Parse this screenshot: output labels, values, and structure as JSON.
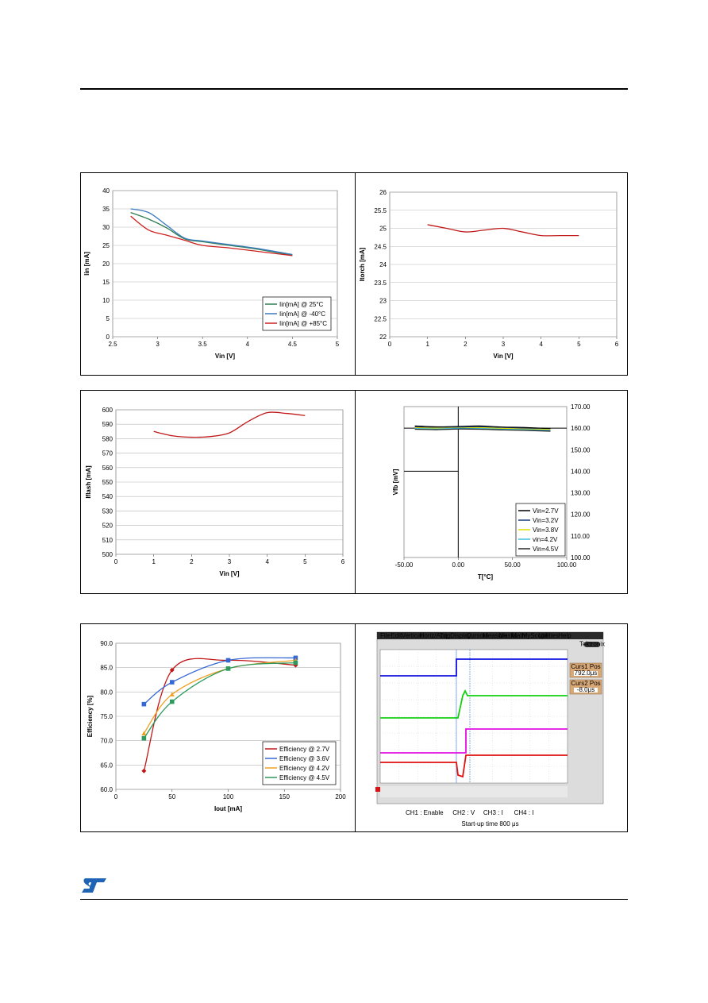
{
  "charts": [
    {
      "type": "line",
      "xlabel": "Vin [V]",
      "ylabel": "lin [mA]",
      "xlim": [
        2.5,
        5
      ],
      "ylim": [
        0,
        40
      ],
      "xticks": [
        2.5,
        3,
        3.5,
        4,
        4.5,
        5
      ],
      "yticks": [
        0,
        5,
        10,
        15,
        20,
        25,
        30,
        35,
        40
      ],
      "grid": true,
      "legend": "bottom-right",
      "series": [
        {
          "name": "Iin[mA] @ 25°C",
          "color": "#2e7d4f",
          "x": [
            2.7,
            2.9,
            3.1,
            3.3,
            3.5,
            3.8,
            4.1,
            4.5
          ],
          "y": [
            34,
            32.2,
            29.8,
            26.8,
            26,
            25,
            24,
            22.3
          ]
        },
        {
          "name": "Iin[mA] @ -40°C",
          "color": "#3b7bbf",
          "x": [
            2.7,
            2.9,
            3.1,
            3.3,
            3.5,
            3.8,
            4.1,
            4.5
          ],
          "y": [
            35,
            34,
            30.5,
            27,
            26.2,
            25.2,
            24.2,
            22.5
          ]
        },
        {
          "name": "Iin[mA] @ +85°C",
          "color": "#d02020",
          "x": [
            2.7,
            2.9,
            3.1,
            3.3,
            3.5,
            3.8,
            4.1,
            4.5
          ],
          "y": [
            33,
            29.2,
            27.8,
            26.4,
            25,
            24.3,
            23.4,
            22.2
          ]
        }
      ]
    },
    {
      "type": "line",
      "xlabel": "Vin [V]",
      "ylabel": "Itorch [mA]",
      "xlim": [
        0,
        6
      ],
      "ylim": [
        22,
        26
      ],
      "xticks": [
        0,
        1,
        2,
        3,
        4,
        5,
        6
      ],
      "yticks": [
        22,
        22.5,
        23,
        23.5,
        24,
        24.5,
        25,
        25.5,
        26
      ],
      "grid": true,
      "series": [
        {
          "name": "",
          "color": "#c01818",
          "x": [
            1,
            1.5,
            2,
            2.5,
            3,
            3.5,
            4,
            4.5,
            5
          ],
          "y": [
            25.1,
            25,
            24.9,
            24.95,
            25,
            24.9,
            24.8,
            24.8,
            24.8
          ]
        }
      ]
    },
    {
      "type": "line",
      "xlabel": "Vin [V]",
      "ylabel": "Iflash [mA]",
      "xlim": [
        0,
        6
      ],
      "ylim": [
        500,
        600
      ],
      "xticks": [
        0,
        1,
        2,
        3,
        4,
        5,
        6
      ],
      "yticks": [
        500,
        510,
        520,
        530,
        540,
        550,
        560,
        570,
        580,
        590,
        600
      ],
      "grid": true,
      "series": [
        {
          "name": "",
          "color": "#c01818",
          "x": [
            1,
            1.5,
            2,
            2.5,
            3,
            3.5,
            4,
            4.5,
            5
          ],
          "y": [
            585,
            582,
            581,
            581.5,
            584,
            592,
            598,
            597.5,
            596
          ]
        }
      ]
    },
    {
      "type": "line",
      "xlabel": "T[°C]",
      "ylabel": "Vfb [mV]",
      "xlim": [
        -50,
        100
      ],
      "ylim": [
        100,
        170
      ],
      "xticks": [
        -50,
        0,
        50,
        100
      ],
      "yticks": [
        100,
        110,
        120,
        130,
        140,
        150,
        160,
        170
      ],
      "xtick_labels": [
        "-50.00",
        "0.00",
        "50.00",
        "100.00"
      ],
      "ytick_labels": [
        "100.00",
        "110.00",
        "120.00",
        "130.00",
        "140.00",
        "150.00",
        "160.00",
        "170.00"
      ],
      "legend": "bottom-right",
      "series": [
        {
          "name": "Vin=2.7V",
          "color": "#000000",
          "x": [
            -40,
            -20,
            0,
            20,
            40,
            60,
            85
          ],
          "y": [
            161,
            160.6,
            160.8,
            161,
            160.5,
            160.3,
            159.8
          ]
        },
        {
          "name": "Vin=3.2V",
          "color": "#1b3a7a",
          "x": [
            -40,
            -20,
            0,
            20,
            40,
            60,
            85
          ],
          "y": [
            160.5,
            160.2,
            160.4,
            160.6,
            160.1,
            159.9,
            159.2
          ]
        },
        {
          "name": "Vin=3.8V",
          "color": "#e0e000",
          "x": [
            -40,
            -20,
            0,
            20,
            40,
            60,
            85
          ],
          "y": [
            160.2,
            160,
            160.1,
            160.2,
            159.9,
            159.6,
            159.4
          ]
        },
        {
          "name": "vin=4.2V",
          "color": "#40c0e0",
          "x": [
            -40,
            -20,
            0,
            20,
            40,
            60,
            85
          ],
          "y": [
            159.8,
            159.6,
            159.9,
            159.8,
            159.5,
            159.3,
            159
          ]
        },
        {
          "name": "Vin=4.5V",
          "color": "#2a2a2a",
          "x": [
            -40,
            -20,
            0,
            20,
            40,
            60,
            85
          ],
          "y": [
            159.5,
            159.3,
            159.6,
            159.5,
            159.2,
            159,
            158.6
          ]
        }
      ]
    },
    {
      "type": "line",
      "xlabel": "Iout [mA]",
      "ylabel": "Efficiency [%]",
      "xlim": [
        0,
        200
      ],
      "ylim": [
        60,
        90
      ],
      "xticks": [
        0,
        50,
        100,
        150,
        200
      ],
      "yticks": [
        60,
        65,
        70,
        75,
        80,
        85,
        90
      ],
      "xtick_labels": [
        "0",
        "50",
        "100",
        "150",
        "200"
      ],
      "ytick_labels": [
        "60.0",
        "65.0",
        "70.0",
        "75.0",
        "80.0",
        "85.0",
        "90.0"
      ],
      "grid": true,
      "legend": "bottom-right",
      "series": [
        {
          "name": "Efficiency @ 2.7V",
          "color": "#c01818",
          "marker": "diamond",
          "x": [
            25,
            50,
            100,
            160
          ],
          "y": [
            63.8,
            84.5,
            86.5,
            85.5
          ]
        },
        {
          "name": "Efficiency @ 3.6V",
          "color": "#3568d4",
          "marker": "square",
          "x": [
            25,
            50,
            100,
            160
          ],
          "y": [
            77.5,
            82,
            86.5,
            87
          ]
        },
        {
          "name": "Efficiency @ 4.2V",
          "color": "#f0a020",
          "marker": "triangle",
          "x": [
            25,
            50,
            100,
            160
          ],
          "y": [
            71.5,
            79.5,
            84.8,
            86.5
          ]
        },
        {
          "name": "Efficiency @ 4.5V",
          "color": "#2e9a5e",
          "marker": "square",
          "x": [
            25,
            50,
            100,
            160
          ],
          "y": [
            70.5,
            78,
            84.8,
            86
          ]
        }
      ]
    }
  ],
  "scope": {
    "menu": [
      "File",
      "Edit",
      "Vertical",
      "Horiz/Acq",
      "Trig",
      "Display",
      "Cursors",
      "Measure",
      "Masks",
      "Math",
      "MyScope",
      "Utilities",
      "Help"
    ],
    "logo": "Tektronix",
    "panel1_label": "Curs1 Pos",
    "panel1_value": "792.0μs",
    "panel2_label": "Curs2 Pos",
    "panel2_value": "-8.0μs",
    "legend_items": [
      "CH1 : Enable",
      "CH2 : V",
      "CH3 : I",
      "CH4 : I"
    ],
    "caption": "Start-up time 800 μs"
  }
}
